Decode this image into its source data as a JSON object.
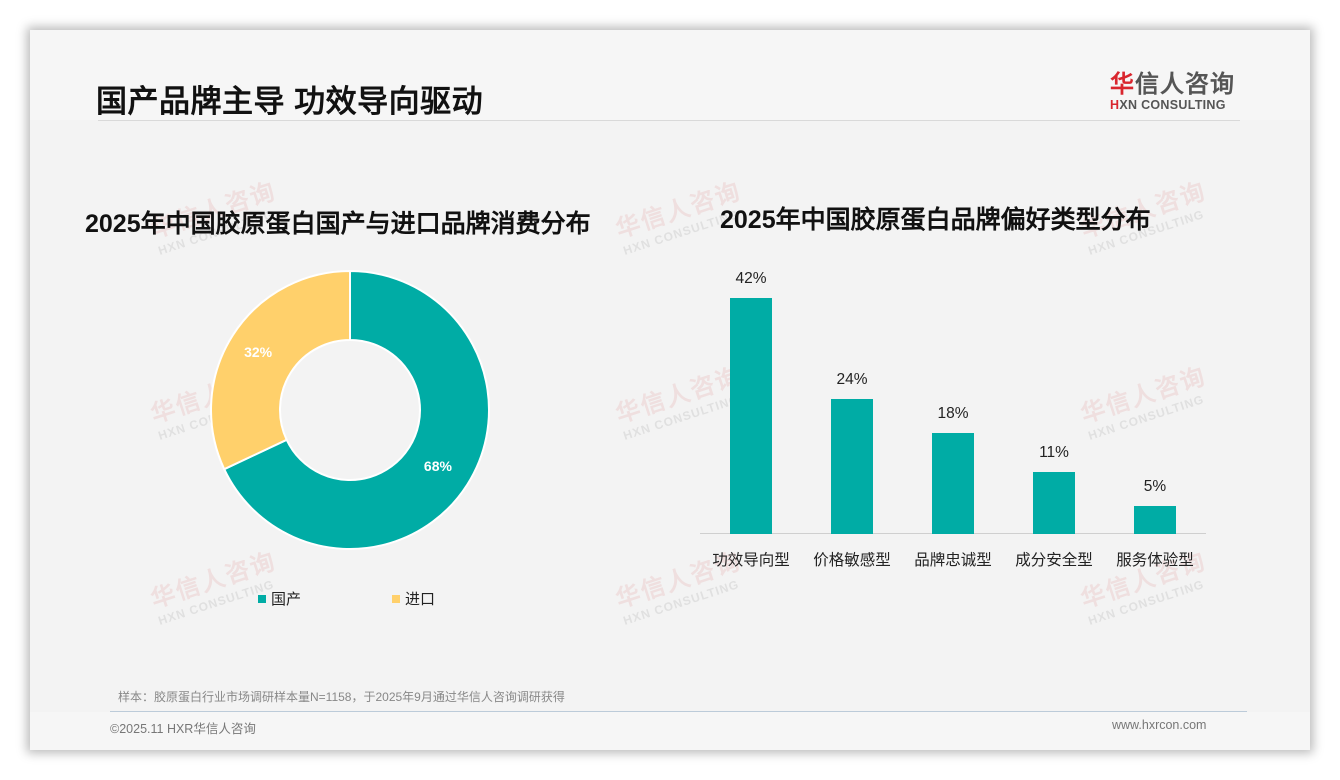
{
  "header": {
    "title": "国产品牌主导 功效导向驱动",
    "logo": {
      "cn_accent": "华",
      "cn_rest": "信人咨询",
      "en_accent": "H",
      "en_rest": "XN CONSULTING"
    }
  },
  "watermark": {
    "cn": "华信人咨询",
    "en": "HXN CONSULTING"
  },
  "colors": {
    "teal": "#00aca5",
    "yellow": "#ffd06b",
    "logo_red": "#d9262e"
  },
  "chart_data": [
    {
      "type": "pie",
      "title": "2025年中国胶原蛋白国产与进口品牌消费分布",
      "categories": [
        "国产",
        "进口"
      ],
      "values": [
        68,
        32
      ],
      "labels": [
        "68%",
        "32%"
      ],
      "colors": [
        "#00aca5",
        "#ffd06b"
      ],
      "donut": true,
      "legend_position": "bottom"
    },
    {
      "type": "bar",
      "title": "2025年中国胶原蛋白品牌偏好类型分布",
      "categories": [
        "功效导向型",
        "价格敏感型",
        "品牌忠诚型",
        "成分安全型",
        "服务体验型"
      ],
      "values": [
        42,
        24,
        18,
        11,
        5
      ],
      "labels": [
        "42%",
        "24%",
        "18%",
        "11%",
        "5%"
      ],
      "unit": "%",
      "color": "#00aca5",
      "xlabel": "",
      "ylabel": "",
      "grid": false
    }
  ],
  "footer": {
    "note": "样本：胶原蛋白行业市场调研样本量N=1158，于2025年9月通过华信人咨询调研获得",
    "copyright": "©2025.11 HXR华信人咨询",
    "website": "www.hxrcon.com"
  }
}
